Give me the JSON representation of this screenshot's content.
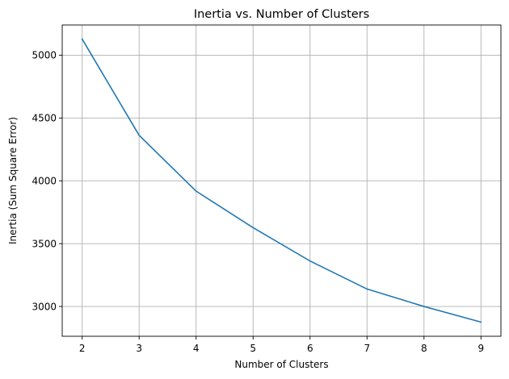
{
  "chart_data": {
    "type": "line",
    "title": "Inertia vs. Number of Clusters",
    "xlabel": "Number of Clusters",
    "ylabel": "Inertia (Sum Square Error)",
    "x": [
      2,
      3,
      4,
      5,
      6,
      7,
      8,
      9
    ],
    "series": [
      {
        "values": [
          5128,
          4362,
          3918,
          3627,
          3362,
          3139,
          3000,
          2876
        ],
        "color": "#1f77b4"
      }
    ],
    "xlim": [
      1.65,
      9.35
    ],
    "ylim": [
      2763,
      5240
    ],
    "xticks": [
      2,
      3,
      4,
      5,
      6,
      7,
      8,
      9
    ],
    "yticks": [
      3000,
      3500,
      4000,
      4500,
      5000
    ],
    "grid": true,
    "grid_color": "#b0b0b0"
  }
}
